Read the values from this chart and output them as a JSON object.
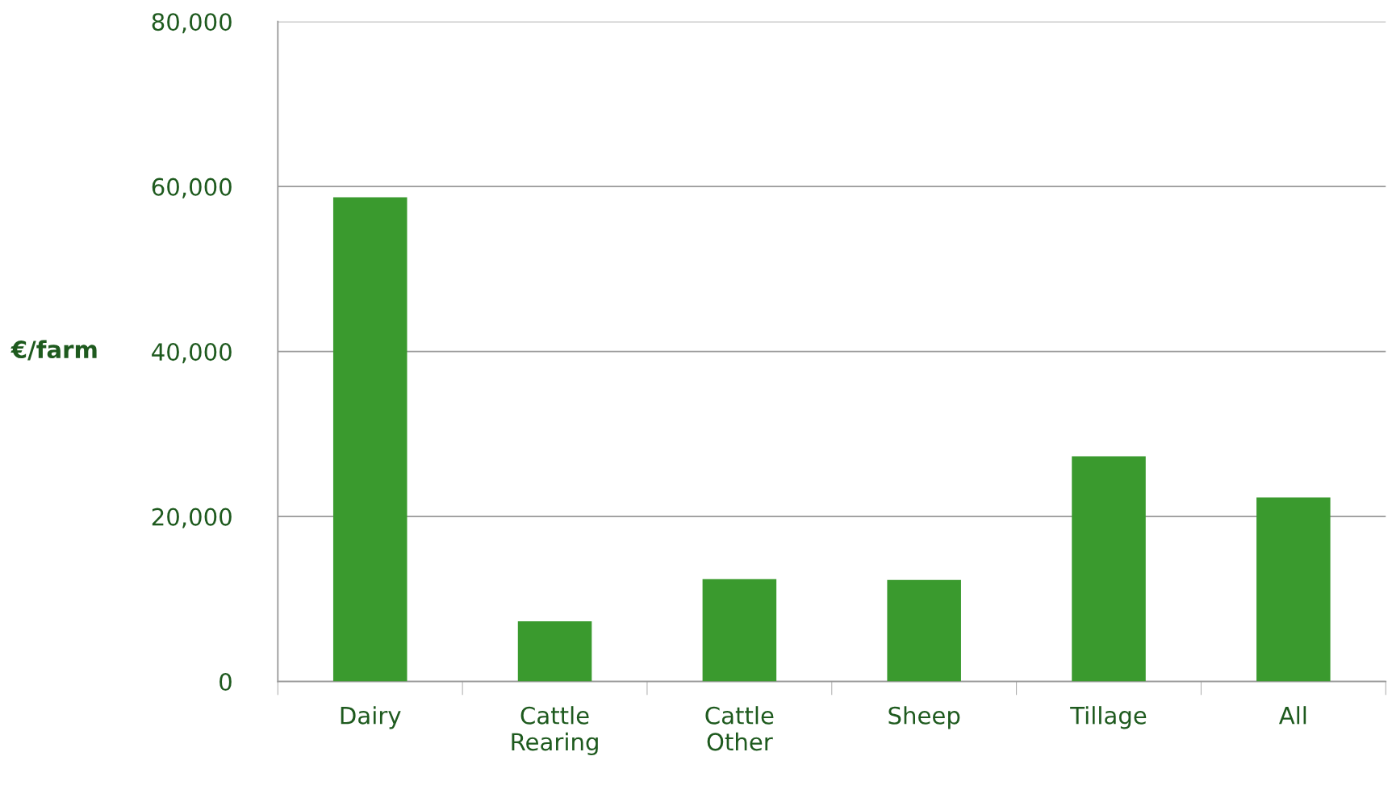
{
  "chart_data": {
    "type": "bar",
    "ylabel": "€/farm",
    "categories": [
      "Dairy",
      "Cattle\nRearing",
      "Cattle\nOther",
      "Sheep",
      "Tillage",
      "All"
    ],
    "values": [
      58700,
      7300,
      12400,
      12300,
      27300,
      22300
    ],
    "color": "#3a9a2e",
    "ylim": [
      0,
      80000
    ],
    "yticks": [
      {
        "value": 0,
        "label": "0"
      },
      {
        "value": 20000,
        "label": "20,000"
      },
      {
        "value": 40000,
        "label": "40,000"
      },
      {
        "value": 60000,
        "label": "60,000"
      },
      {
        "value": 80000,
        "label": "80,000"
      }
    ],
    "grid": "y",
    "legend": false
  }
}
